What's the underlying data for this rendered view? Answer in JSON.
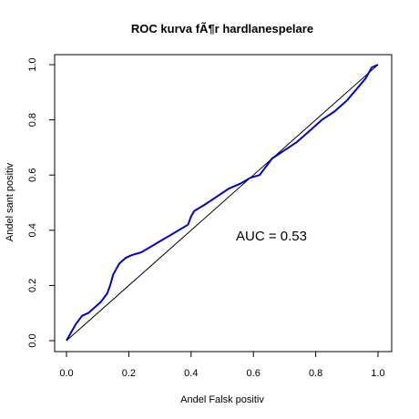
{
  "chart_data": {
    "type": "line",
    "title": "ROC kurva fÃ¶r hardlanespelare",
    "xlabel": "Andel Falsk positiv",
    "ylabel": "Andel sant positiv",
    "xlim": [
      0,
      1
    ],
    "ylim": [
      0,
      1
    ],
    "x_ticks": [
      0.0,
      0.2,
      0.4,
      0.6,
      0.8,
      1.0
    ],
    "y_ticks": [
      0.0,
      0.2,
      0.4,
      0.6,
      0.8,
      1.0
    ],
    "x_tick_labels": [
      "0.0",
      "0.2",
      "0.4",
      "0.6",
      "0.8",
      "1.0"
    ],
    "y_tick_labels": [
      "0.0",
      "0.2",
      "0.4",
      "0.6",
      "0.8",
      "1.0"
    ],
    "grid": false,
    "annotation": "AUC  = 0.53",
    "colors": {
      "roc": "#0000CD",
      "reference": "#000000"
    },
    "series": [
      {
        "x": [
          0.0,
          0.01,
          0.02,
          0.03,
          0.05,
          0.07,
          0.09,
          0.11,
          0.13,
          0.14,
          0.15,
          0.16,
          0.17,
          0.19,
          0.21,
          0.24,
          0.27,
          0.3,
          0.33,
          0.36,
          0.39,
          0.4,
          0.41,
          0.44,
          0.48,
          0.52,
          0.56,
          0.59,
          0.62,
          0.64,
          0.66,
          0.7,
          0.74,
          0.78,
          0.82,
          0.86,
          0.9,
          0.93,
          0.96,
          0.98,
          1.0
        ],
        "y": [
          0.0,
          0.02,
          0.04,
          0.06,
          0.09,
          0.1,
          0.12,
          0.14,
          0.17,
          0.2,
          0.24,
          0.26,
          0.28,
          0.3,
          0.31,
          0.32,
          0.34,
          0.36,
          0.38,
          0.4,
          0.42,
          0.45,
          0.47,
          0.49,
          0.52,
          0.55,
          0.57,
          0.59,
          0.6,
          0.63,
          0.66,
          0.69,
          0.72,
          0.76,
          0.8,
          0.83,
          0.87,
          0.91,
          0.95,
          0.99,
          1.0
        ]
      },
      {
        "x": [
          0,
          1
        ],
        "y": [
          0,
          1
        ]
      }
    ]
  }
}
